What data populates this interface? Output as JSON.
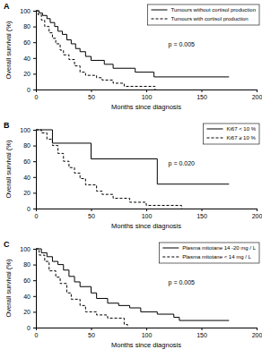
{
  "chart_data": [
    {
      "type": "line",
      "title": "A",
      "xlabel": "Months since diagnosis",
      "ylabel": "Overall survival (%)",
      "xlim": [
        0,
        200
      ],
      "ylim": [
        0,
        100
      ],
      "xticks": [
        0,
        50,
        100,
        150,
        200
      ],
      "yticks": [
        0,
        20,
        40,
        60,
        80,
        100
      ],
      "legend": "upper right",
      "annotation": "p = 0.005",
      "series": [
        {
          "name": "Tumours without cortisol production",
          "color": "#000000",
          "line_style": "solid",
          "x": [
            0,
            3,
            6,
            10,
            13,
            17,
            20,
            24,
            28,
            32,
            36,
            40,
            45,
            50,
            62,
            70,
            90,
            107,
            175
          ],
          "values": [
            100,
            97,
            94,
            90,
            85,
            80,
            74,
            70,
            63,
            58,
            52,
            48,
            42,
            37,
            32,
            27,
            22,
            16,
            16
          ]
        },
        {
          "name": "Tumours with cortisol production",
          "color": "#000000",
          "line_style": "dashed",
          "x": [
            0,
            2,
            5,
            8,
            12,
            15,
            18,
            22,
            25,
            30,
            35,
            40,
            45,
            55,
            60,
            70,
            80,
            108
          ],
          "values": [
            100,
            95,
            88,
            80,
            72,
            65,
            58,
            50,
            44,
            38,
            30,
            22,
            18,
            15,
            12,
            8,
            4,
            0
          ]
        }
      ]
    },
    {
      "type": "line",
      "title": "B",
      "xlabel": "Months since diagnosis",
      "ylabel": "Overall survival (%)",
      "xlim": [
        0,
        200
      ],
      "ylim": [
        0,
        100
      ],
      "xticks": [
        0,
        50,
        100,
        150,
        200
      ],
      "yticks": [
        0,
        20,
        40,
        60,
        80,
        100
      ],
      "legend": "upper right",
      "annotation": "p = 0.020",
      "series": [
        {
          "name": "Ki67 < 10 %",
          "color": "#000000",
          "line_style": "solid",
          "x": [
            0,
            15,
            50,
            110,
            175
          ],
          "values": [
            100,
            83,
            63,
            31,
            31
          ]
        },
        {
          "name": "Ki67 ≥ 10 %",
          "color": "#000000",
          "line_style": "dashed",
          "x": [
            0,
            5,
            10,
            15,
            20,
            25,
            30,
            35,
            40,
            45,
            55,
            60,
            70,
            85,
            100,
            132
          ],
          "values": [
            100,
            96,
            88,
            80,
            70,
            60,
            52,
            45,
            38,
            30,
            22,
            18,
            13,
            8,
            4,
            0
          ]
        }
      ]
    },
    {
      "type": "line",
      "title": "C",
      "xlabel": "Months since diagnosis",
      "ylabel": "Overall survival (%)",
      "xlim": [
        0,
        200
      ],
      "ylim": [
        0,
        100
      ],
      "xticks": [
        0,
        50,
        100,
        150,
        200
      ],
      "yticks": [
        0,
        20,
        40,
        60,
        80,
        100
      ],
      "legend": "upper right",
      "annotation": "p = 0.005",
      "series": [
        {
          "name": "Plasma mitotane 14 -20 mg / L",
          "color": "#000000",
          "line_style": "solid",
          "x": [
            0,
            5,
            10,
            15,
            20,
            25,
            30,
            35,
            40,
            50,
            55,
            65,
            75,
            85,
            95,
            110,
            125,
            130,
            175
          ],
          "values": [
            100,
            95,
            90,
            84,
            80,
            73,
            65,
            58,
            52,
            44,
            37,
            31,
            28,
            25,
            20,
            17,
            13,
            9,
            9
          ]
        },
        {
          "name": "Plasma mitotane < 14 mg / L",
          "color": "#000000",
          "line_style": "dashed",
          "x": [
            0,
            3,
            8,
            12,
            18,
            22,
            28,
            32,
            40,
            45,
            55,
            65,
            80,
            83
          ],
          "values": [
            100,
            92,
            84,
            72,
            64,
            56,
            44,
            36,
            28,
            20,
            16,
            12,
            4,
            0
          ]
        }
      ]
    }
  ]
}
